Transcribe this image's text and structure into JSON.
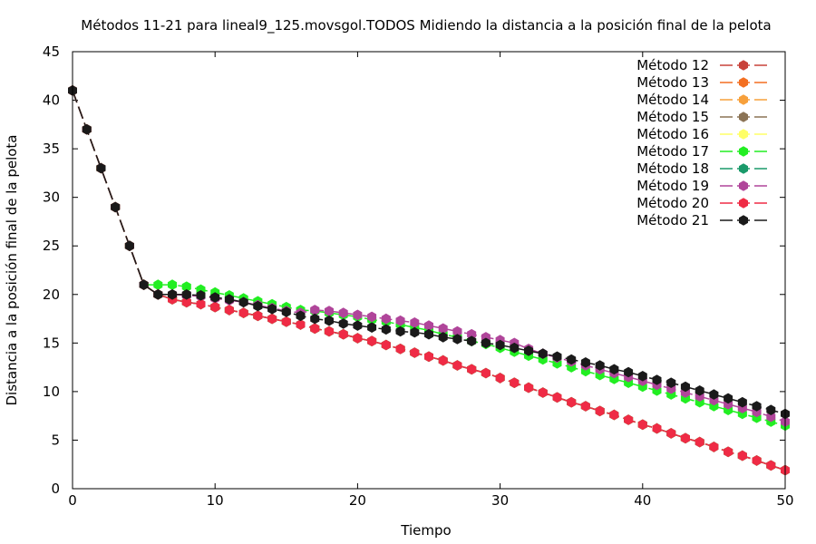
{
  "chart_data": {
    "type": "line",
    "title": "Métodos 11-21 para lineal9_125.movsgol.TODOS Midiendo la distancia a la posición final de la pelota",
    "xlabel": "Tiempo",
    "ylabel": "Distancia a la posición final de la pelota",
    "xlim": [
      0,
      50
    ],
    "ylim": [
      0,
      45
    ],
    "x_ticks": [
      0,
      10,
      20,
      30,
      40,
      50
    ],
    "y_ticks": [
      0,
      5,
      10,
      15,
      20,
      25,
      30,
      35,
      40,
      45
    ],
    "grid": false,
    "legend_position": "top-right",
    "x": [
      0,
      1,
      2,
      3,
      4,
      5,
      6,
      7,
      8,
      9,
      10,
      11,
      12,
      13,
      14,
      15,
      16,
      17,
      18,
      19,
      20,
      21,
      22,
      23,
      24,
      25,
      26,
      27,
      28,
      29,
      30,
      31,
      32,
      33,
      34,
      35,
      36,
      37,
      38,
      39,
      40,
      41,
      42,
      43,
      44,
      45,
      46,
      47,
      48,
      49,
      50
    ],
    "series": [
      {
        "name": "Método 12",
        "color": "#c8423a",
        "values": [
          41,
          37,
          33,
          29,
          25,
          21,
          20,
          19.5,
          19.2,
          19,
          18.7,
          18.4,
          18.1,
          17.8,
          17.5,
          17.2,
          16.9,
          16.5,
          16.2,
          15.9,
          15.5,
          15.2,
          14.8,
          14.4,
          14,
          13.6,
          13.2,
          12.7,
          12.3,
          11.9,
          11.4,
          10.9,
          10.4,
          9.9,
          9.4,
          8.9,
          8.5,
          8,
          7.6,
          7.1,
          6.6,
          6.2,
          5.7,
          5.2,
          4.8,
          4.3,
          3.8,
          3.4,
          2.9,
          2.4,
          1.9
        ]
      },
      {
        "name": "Método 13",
        "color": "#f36f21",
        "values": [
          41,
          37,
          33,
          29,
          25,
          21,
          20,
          19.5,
          19.2,
          19,
          18.7,
          18.4,
          18.1,
          17.8,
          17.5,
          17.2,
          16.9,
          16.5,
          16.2,
          15.9,
          15.5,
          15.2,
          14.8,
          14.4,
          14,
          13.6,
          13.2,
          12.7,
          12.3,
          11.9,
          11.4,
          10.9,
          10.4,
          9.9,
          9.4,
          8.9,
          8.5,
          8,
          7.6,
          7.1,
          6.6,
          6.2,
          5.7,
          5.2,
          4.8,
          4.3,
          3.8,
          3.4,
          2.9,
          2.4,
          1.9
        ]
      },
      {
        "name": "Método 14",
        "color": "#f7a03b",
        "values": [
          41,
          37,
          33,
          29,
          25,
          21,
          20,
          19.5,
          19.2,
          19,
          18.7,
          18.4,
          18.1,
          17.8,
          17.5,
          17.2,
          16.9,
          16.5,
          16.2,
          15.9,
          15.5,
          15.2,
          14.8,
          14.4,
          14,
          13.6,
          13.2,
          12.7,
          12.3,
          11.9,
          11.4,
          10.9,
          10.4,
          9.9,
          9.4,
          8.9,
          8.5,
          8,
          7.6,
          7.1,
          6.6,
          6.2,
          5.7,
          5.2,
          4.8,
          4.3,
          3.8,
          3.4,
          2.9,
          2.4,
          1.9
        ]
      },
      {
        "name": "Método 15",
        "color": "#8b7355",
        "values": [
          41,
          37,
          33,
          29,
          25,
          21,
          20,
          19.5,
          19.2,
          19,
          18.7,
          18.4,
          18.1,
          17.8,
          17.5,
          17.2,
          16.9,
          16.5,
          16.2,
          15.9,
          15.5,
          15.2,
          14.8,
          14.4,
          14,
          13.6,
          13.2,
          12.7,
          12.3,
          11.9,
          11.4,
          10.9,
          10.4,
          9.9,
          9.4,
          8.9,
          8.5,
          8,
          7.6,
          7.1,
          6.6,
          6.2,
          5.7,
          5.2,
          4.8,
          4.3,
          3.8,
          3.4,
          2.9,
          2.4,
          1.9
        ]
      },
      {
        "name": "Método 16",
        "color": "#ffff66",
        "values": [
          41,
          37,
          33,
          29,
          25,
          21,
          20,
          19.5,
          19.2,
          19,
          18.7,
          18.4,
          18.1,
          17.8,
          17.5,
          17.2,
          16.9,
          16.5,
          16.2,
          15.9,
          15.5,
          15.2,
          14.8,
          14.4,
          14,
          13.6,
          13.2,
          12.7,
          12.3,
          11.9,
          11.4,
          10.9,
          10.4,
          9.9,
          9.4,
          8.9,
          8.5,
          8,
          7.6,
          7.1,
          6.6,
          6.2,
          5.7,
          5.2,
          4.8,
          4.3,
          3.8,
          3.4,
          2.9,
          2.4,
          1.9
        ]
      },
      {
        "name": "Método 17",
        "color": "#22ee22",
        "values": [
          41,
          37,
          33,
          29,
          25,
          21,
          21,
          21,
          20.8,
          20.5,
          20.2,
          19.9,
          19.6,
          19.3,
          19,
          18.7,
          18.4,
          18.3,
          18.1,
          17.9,
          17.7,
          17.4,
          17.2,
          16.9,
          16.6,
          16.3,
          15.9,
          15.6,
          15.2,
          14.9,
          14.5,
          14.1,
          13.7,
          13.3,
          12.9,
          12.5,
          12.1,
          11.7,
          11.3,
          10.9,
          10.5,
          10.1,
          9.7,
          9.3,
          8.9,
          8.5,
          8.1,
          7.7,
          7.3,
          6.9,
          6.5
        ]
      },
      {
        "name": "Método 18",
        "color": "#1a9a6a",
        "values": [
          41,
          37,
          33,
          29,
          25,
          21,
          20,
          19.5,
          19.2,
          19,
          18.7,
          18.4,
          18.1,
          17.8,
          17.5,
          17.2,
          16.9,
          16.5,
          16.2,
          15.9,
          15.5,
          15.2,
          14.8,
          14.4,
          14,
          13.6,
          13.2,
          12.7,
          12.3,
          11.9,
          11.4,
          10.9,
          10.4,
          9.9,
          9.4,
          8.9,
          8.5,
          8,
          7.6,
          7.1,
          6.6,
          6.2,
          5.7,
          5.2,
          4.8,
          4.3,
          3.8,
          3.4,
          2.9,
          2.4,
          1.9
        ]
      },
      {
        "name": "Método 19",
        "color": "#b0459a",
        "values": [
          41,
          37,
          33,
          29,
          25,
          21,
          20,
          20,
          19.9,
          19.8,
          19.6,
          19.4,
          19.2,
          18.9,
          18.6,
          18.3,
          18.1,
          18.4,
          18.3,
          18.1,
          17.9,
          17.7,
          17.5,
          17.3,
          17.1,
          16.8,
          16.5,
          16.2,
          15.9,
          15.6,
          15.3,
          15,
          14.4,
          13.9,
          13.5,
          13.1,
          12.7,
          12.3,
          11.9,
          11.5,
          11.1,
          10.7,
          10.3,
          9.9,
          9.5,
          9.1,
          8.7,
          8.3,
          7.9,
          7.4,
          6.9
        ]
      },
      {
        "name": "Método 20",
        "color": "#ef2b45",
        "values": [
          41,
          37,
          33,
          29,
          25,
          21,
          20,
          19.5,
          19.2,
          19,
          18.7,
          18.4,
          18.1,
          17.8,
          17.5,
          17.2,
          16.9,
          16.5,
          16.2,
          15.9,
          15.5,
          15.2,
          14.8,
          14.4,
          14,
          13.6,
          13.2,
          12.7,
          12.3,
          11.9,
          11.4,
          10.9,
          10.4,
          9.9,
          9.4,
          8.9,
          8.5,
          8,
          7.6,
          7.1,
          6.6,
          6.2,
          5.7,
          5.2,
          4.8,
          4.3,
          3.8,
          3.4,
          2.9,
          2.4,
          1.9
        ]
      },
      {
        "name": "Método 21",
        "color": "#1a1a1a",
        "values": [
          41,
          37,
          33,
          29,
          25,
          21,
          20,
          20,
          20,
          19.9,
          19.7,
          19.5,
          19.2,
          18.8,
          18.5,
          18.2,
          17.8,
          17.5,
          17.3,
          17,
          16.8,
          16.6,
          16.4,
          16.2,
          16.1,
          15.9,
          15.6,
          15.4,
          15.2,
          15,
          14.8,
          14.5,
          14.2,
          13.9,
          13.6,
          13.3,
          13,
          12.7,
          12.3,
          12,
          11.6,
          11.2,
          10.9,
          10.5,
          10.1,
          9.7,
          9.3,
          8.9,
          8.5,
          8.1,
          7.7
        ]
      }
    ]
  }
}
